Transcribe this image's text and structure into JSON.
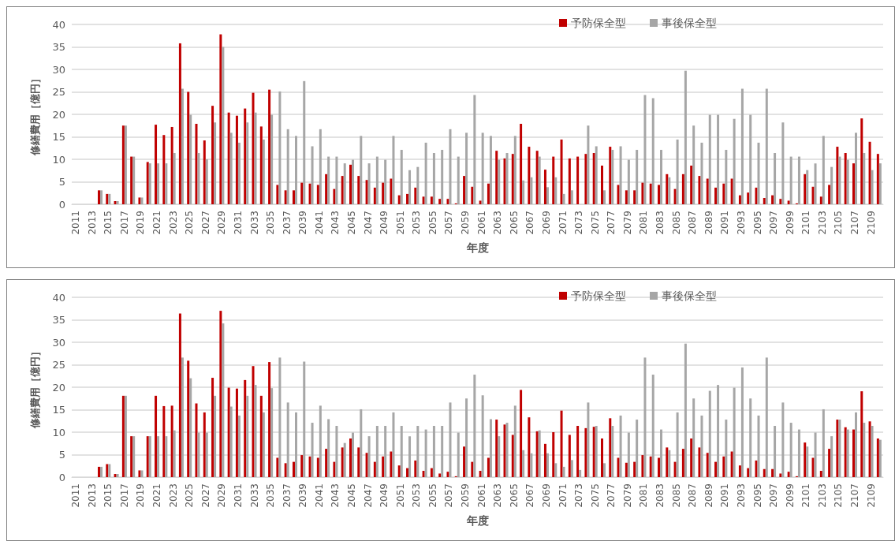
{
  "chart_data": [
    {
      "type": "bar",
      "xlabel": "年度",
      "ylabel": "修繕費用［億円］",
      "categories": [
        "2011",
        null,
        "2013",
        null,
        "2015",
        null,
        "2017",
        null,
        "2019",
        null,
        "2021",
        null,
        "2023",
        null,
        "2025",
        null,
        "2027",
        null,
        "2029",
        null,
        "2031",
        null,
        "2033",
        null,
        "2035",
        null,
        "2037",
        null,
        "2039",
        null,
        "2041",
        null,
        "2043",
        null,
        "2045",
        null,
        "2047",
        null,
        "2049",
        null,
        "2051",
        null,
        "2053",
        null,
        "2055",
        null,
        "2057",
        null,
        "2059",
        null,
        "2061",
        null,
        "2063",
        null,
        "2065",
        null,
        "2067",
        null,
        "2069",
        null,
        "2071",
        null,
        "2073",
        null,
        "2075",
        null,
        "2077",
        null,
        "2079",
        null,
        "2081",
        null,
        "2083",
        null,
        "2085",
        null,
        "2087",
        null,
        "2089",
        null,
        "2091",
        null,
        "2093",
        null,
        "2095",
        null,
        "2097",
        null,
        "2099",
        null,
        "2101",
        null,
        "2103",
        null,
        "2105",
        null,
        "2107",
        null,
        "2109",
        null
      ],
      "series": [
        {
          "name": "予防保全型",
          "color": "#c00000",
          "values": [
            0,
            0,
            0,
            3.1,
            2.3,
            0.7,
            17.5,
            10.6,
            1.5,
            9.4,
            17.7,
            15.4,
            17.2,
            35.8,
            25.0,
            17.9,
            14.2,
            21.9,
            37.8,
            20.4,
            19.7,
            21.3,
            24.8,
            17.3,
            25.5,
            4.3,
            3.1,
            3.1,
            4.8,
            4.6,
            4.3,
            6.7,
            3.4,
            6.3,
            8.8,
            6.3,
            5.4,
            3.7,
            4.8,
            5.7,
            2.0,
            2.3,
            3.7,
            1.7,
            1.7,
            1.2,
            1.2,
            0.2,
            6.3,
            3.9,
            0.8,
            4.6,
            11.9,
            10.2,
            11.2,
            17.9,
            12.8,
            11.9,
            7.7,
            10.6,
            14.4,
            10.2,
            10.6,
            11.2,
            11.4,
            8.6,
            12.8,
            4.3,
            3.1,
            3.1,
            4.8,
            4.6,
            4.3,
            6.7,
            3.4,
            6.7,
            8.6,
            6.3,
            5.7,
            3.7,
            4.6,
            5.7,
            2.0,
            2.6,
            3.7,
            1.4,
            2.0,
            1.2,
            0.8,
            0.2,
            6.7,
            3.9,
            1.7,
            4.3,
            12.8,
            11.4,
            9.1,
            19.1,
            13.9,
            11.2
          ]
        },
        {
          "name": "事後保全型",
          "color": "#a6a6a6",
          "values": [
            0,
            0,
            0,
            3.1,
            2.3,
            0.7,
            17.5,
            10.6,
            1.5,
            9.1,
            9.1,
            9.1,
            11.4,
            25.7,
            19.9,
            11.4,
            10.0,
            18.2,
            35.0,
            15.9,
            13.7,
            18.2,
            20.4,
            14.4,
            19.9,
            25.1,
            16.7,
            15.2,
            27.4,
            12.9,
            16.7,
            10.6,
            10.6,
            9.1,
            9.9,
            15.2,
            9.1,
            10.6,
            9.9,
            15.2,
            12.1,
            7.6,
            8.3,
            13.7,
            11.4,
            12.1,
            16.7,
            10.6,
            15.9,
            24.3,
            15.9,
            15.2,
            9.9,
            11.4,
            15.2,
            5.3,
            6.0,
            10.6,
            3.8,
            6.0,
            2.3,
            3.1,
            0,
            17.5,
            12.9,
            3.1,
            12.1,
            12.9,
            9.9,
            12.1,
            24.3,
            23.6,
            12.1,
            6.0,
            14.4,
            29.7,
            17.5,
            13.7,
            19.9,
            19.9,
            12.1,
            19.0,
            25.7,
            19.9,
            13.7,
            25.7,
            11.4,
            18.2,
            10.6,
            10.6,
            7.6,
            9.1,
            15.2,
            8.3,
            10.6,
            9.9,
            15.9,
            11.4,
            7.6,
            9.1
          ]
        }
      ],
      "ylim": [
        0,
        40
      ],
      "yticks": [
        0,
        5,
        10,
        15,
        20,
        25,
        30,
        35,
        40
      ],
      "grid": "y",
      "legend": "top right"
    },
    {
      "type": "bar",
      "xlabel": "年度",
      "ylabel": "修繕費用［億円］",
      "categories": [
        "2011",
        null,
        "2013",
        null,
        "2015",
        null,
        "2017",
        null,
        "2019",
        null,
        "2021",
        null,
        "2023",
        null,
        "2025",
        null,
        "2027",
        null,
        "2029",
        null,
        "2031",
        null,
        "2033",
        null,
        "2035",
        null,
        "2037",
        null,
        "2039",
        null,
        "2041",
        null,
        "2043",
        null,
        "2045",
        null,
        "2047",
        null,
        "2049",
        null,
        "2051",
        null,
        "2053",
        null,
        "2055",
        null,
        "2057",
        null,
        "2059",
        null,
        "2061",
        null,
        "2063",
        null,
        "2065",
        null,
        "2067",
        null,
        "2069",
        null,
        "2071",
        null,
        "2073",
        null,
        "2075",
        null,
        "2077",
        null,
        "2079",
        null,
        "2081",
        null,
        "2083",
        null,
        "2085",
        null,
        "2087",
        null,
        "2089",
        null,
        "2091",
        null,
        "2093",
        null,
        "2095",
        null,
        "2097",
        null,
        "2099",
        null,
        "2101",
        null,
        "2103",
        null,
        "2105",
        null,
        "2107",
        null,
        "2109",
        null
      ],
      "series": [
        {
          "name": "予防保全型",
          "color": "#c00000",
          "values": [
            0,
            0,
            0,
            2.3,
            2.9,
            0.7,
            18.1,
            9.1,
            1.5,
            9.1,
            18.1,
            15.8,
            15.9,
            36.4,
            25.9,
            16.4,
            14.4,
            22.1,
            37.0,
            19.9,
            19.7,
            21.6,
            24.7,
            18.1,
            25.6,
            4.3,
            3.1,
            3.4,
            4.9,
            4.6,
            4.3,
            6.3,
            3.4,
            6.6,
            8.6,
            6.6,
            5.4,
            3.4,
            4.6,
            5.7,
            2.6,
            2.0,
            3.7,
            1.4,
            2.0,
            0.8,
            1.2,
            0.2,
            6.8,
            3.4,
            1.4,
            4.3,
            12.8,
            11.7,
            9.4,
            19.4,
            13.3,
            10.2,
            7.4,
            10.0,
            14.8,
            9.4,
            11.4,
            10.9,
            11.2,
            8.6,
            13.1,
            4.3,
            3.2,
            3.4,
            4.9,
            4.6,
            4.3,
            6.6,
            3.4,
            6.3,
            8.6,
            6.6,
            5.4,
            3.4,
            4.6,
            5.7,
            2.6,
            2.0,
            3.7,
            1.8,
            1.8,
            0.8,
            1.2,
            0.2,
            7.7,
            4.3,
            1.4,
            6.3,
            12.8,
            11.1,
            10.6,
            19.1,
            12.4,
            8.6
          ]
        },
        {
          "name": "事後保全型",
          "color": "#a6a6a6",
          "values": [
            0,
            0,
            0,
            2.3,
            2.9,
            0.7,
            18.1,
            9.1,
            1.5,
            9.1,
            9.1,
            9.1,
            10.4,
            26.6,
            22.0,
            9.9,
            9.9,
            18.1,
            34.2,
            15.7,
            13.7,
            18.1,
            20.5,
            14.4,
            19.8,
            26.6,
            16.6,
            14.4,
            25.7,
            12.1,
            15.9,
            12.9,
            11.4,
            7.6,
            9.9,
            15.1,
            9.1,
            11.4,
            11.4,
            14.4,
            11.4,
            9.1,
            11.4,
            10.6,
            11.4,
            11.4,
            16.6,
            9.9,
            17.5,
            22.8,
            18.2,
            12.9,
            9.1,
            12.1,
            15.9,
            6.0,
            5.3,
            10.4,
            5.3,
            3.1,
            2.3,
            3.8,
            1.6,
            16.6,
            11.4,
            3.1,
            11.4,
            13.7,
            9.9,
            12.8,
            26.6,
            22.8,
            10.6,
            6.0,
            14.4,
            29.7,
            17.5,
            13.7,
            19.2,
            20.5,
            12.8,
            19.9,
            24.4,
            17.5,
            13.7,
            26.6,
            11.4,
            16.6,
            12.1,
            10.6,
            6.8,
            9.9,
            15.1,
            9.1,
            12.8,
            10.6,
            14.4,
            12.1,
            11.4,
            8.3
          ]
        }
      ],
      "ylim": [
        0,
        40
      ],
      "yticks": [
        0,
        5,
        10,
        15,
        20,
        25,
        30,
        35,
        40
      ],
      "grid": "y",
      "legend": "top right"
    }
  ]
}
